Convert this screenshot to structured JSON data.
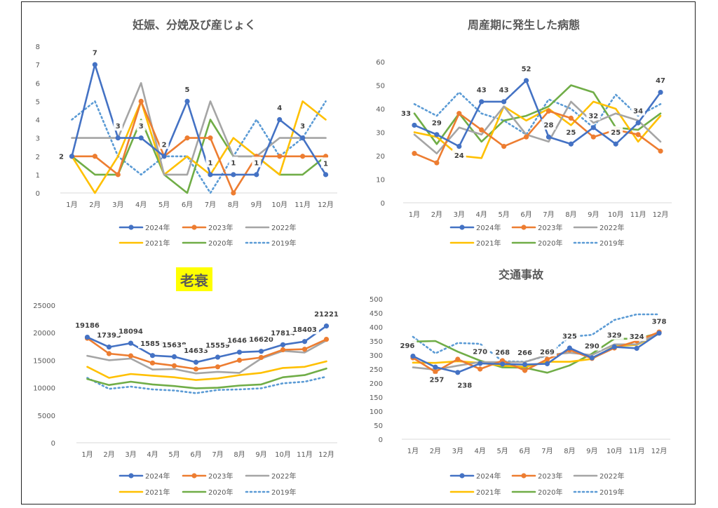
{
  "chart_data": [
    {
      "type": "line",
      "title": "妊娠、分娩及び産じょく",
      "categories": [
        "1月",
        "2月",
        "3月",
        "4月",
        "5月",
        "6月",
        "7月",
        "8月",
        "9月",
        "10月",
        "11月",
        "12月"
      ],
      "ylim": [
        0,
        8
      ],
      "yticks": [
        0,
        1,
        2,
        3,
        4,
        5,
        6,
        7,
        8
      ],
      "grid": false,
      "legend": "bottom",
      "series": [
        {
          "name": "2024年",
          "values": [
            2,
            7,
            3,
            3,
            2,
            5,
            1,
            1,
            1,
            4,
            3,
            1
          ]
        },
        {
          "name": "2023年",
          "values": [
            2,
            2,
            1,
            5,
            2,
            3,
            3,
            0,
            2,
            2,
            2,
            2
          ]
        },
        {
          "name": "2022年",
          "values": [
            3,
            3,
            3,
            6,
            1,
            1,
            5,
            2,
            2,
            3,
            3,
            3
          ]
        },
        {
          "name": "2021年",
          "values": [
            2,
            0,
            2,
            5,
            1,
            2,
            1,
            3,
            2,
            1,
            5,
            4
          ]
        },
        {
          "name": "2020年",
          "values": [
            2,
            1,
            1,
            4,
            1,
            0,
            4,
            2,
            2,
            1,
            1,
            2
          ]
        },
        {
          "name": "2019年",
          "values": [
            4,
            5,
            2,
            1,
            2,
            2,
            0,
            2,
            4,
            2,
            3,
            5
          ]
        }
      ],
      "data_labels": [
        "2",
        "7",
        "3",
        "3",
        "2",
        "5",
        "1",
        "1",
        "1",
        "4",
        "3",
        "1"
      ]
    },
    {
      "type": "line",
      "title": "周産期に発生した病態",
      "categories": [
        "1月",
        "2月",
        "3月",
        "4月",
        "5月",
        "6月",
        "7月",
        "8月",
        "9月",
        "10月",
        "11月",
        "12月"
      ],
      "ylim": [
        0,
        60
      ],
      "yticks": [
        0,
        10,
        20,
        30,
        40,
        50,
        60
      ],
      "grid": false,
      "legend": "bottom",
      "series": [
        {
          "name": "2024年",
          "values": [
            33,
            29,
            24,
            43,
            43,
            52,
            28,
            25,
            32,
            25,
            34,
            47
          ]
        },
        {
          "name": "2023年",
          "values": [
            21,
            17,
            38,
            31,
            24,
            28,
            39,
            36,
            28,
            31,
            29,
            22
          ]
        },
        {
          "name": "2022年",
          "values": [
            29,
            21,
            32,
            29,
            41,
            29,
            26,
            43,
            34,
            38,
            35,
            26
          ]
        },
        {
          "name": "2021年",
          "values": [
            30,
            28,
            20,
            19,
            41,
            35,
            40,
            33,
            43,
            40,
            26,
            37
          ]
        },
        {
          "name": "2020年",
          "values": [
            38,
            25,
            38,
            26,
            35,
            37,
            41,
            50,
            47,
            32,
            31,
            38
          ]
        },
        {
          "name": "2019年",
          "values": [
            42,
            37,
            47,
            38,
            35,
            29,
            44,
            40,
            32,
            46,
            37,
            42
          ]
        }
      ],
      "data_labels": [
        "33",
        "29",
        "24",
        "43",
        "43",
        "52",
        "28",
        "25",
        "32",
        "25",
        "34",
        "47"
      ]
    },
    {
      "type": "line",
      "title": "老衰",
      "categories": [
        "1月",
        "2月",
        "3月",
        "4月",
        "5月",
        "6月",
        "7月",
        "8月",
        "9月",
        "10月",
        "11月",
        "12月"
      ],
      "ylim": [
        0,
        25000
      ],
      "yticks": [
        0,
        5000,
        10000,
        15000,
        20000,
        25000
      ],
      "grid": false,
      "legend": "bottom",
      "series": [
        {
          "name": "2024年",
          "values": [
            19186,
            17393,
            18094,
            15858,
            15638,
            14633,
            15559,
            16463,
            16620,
            17814,
            18403,
            21221
          ]
        },
        {
          "name": "2023年",
          "values": [
            19000,
            16200,
            15800,
            14500,
            14000,
            13400,
            13800,
            15000,
            15500,
            16900,
            17000,
            18800
          ]
        },
        {
          "name": "2022年",
          "values": [
            15800,
            15000,
            15300,
            13300,
            13400,
            12600,
            12900,
            12700,
            15300,
            16700,
            16400,
            18600
          ]
        },
        {
          "name": "2021年",
          "values": [
            13800,
            11800,
            12500,
            12200,
            11900,
            11400,
            11700,
            12300,
            12700,
            13600,
            13800,
            14800
          ]
        },
        {
          "name": "2020年",
          "values": [
            11600,
            10500,
            11100,
            10600,
            10300,
            9900,
            10000,
            10400,
            10600,
            11900,
            12300,
            13500
          ]
        },
        {
          "name": "2019年",
          "values": [
            11800,
            9800,
            10200,
            9700,
            9500,
            9000,
            9600,
            9700,
            9900,
            10800,
            11100,
            12000
          ]
        }
      ],
      "data_labels": [
        "19186",
        "17393",
        "18094",
        "15858",
        "15638",
        "14633",
        "15559",
        "16463",
        "16620",
        "17814",
        "18403",
        "21221"
      ]
    },
    {
      "type": "line",
      "title": "交通事故",
      "categories": [
        "1月",
        "2月",
        "3月",
        "4月",
        "5月",
        "6月",
        "7月",
        "8月",
        "9月",
        "10月",
        "11月",
        "12月"
      ],
      "ylim": [
        0,
        500
      ],
      "yticks": [
        0,
        50,
        100,
        150,
        200,
        250,
        300,
        350,
        400,
        450,
        500
      ],
      "grid": false,
      "legend": "bottom",
      "series": [
        {
          "name": "2024年",
          "values": [
            296,
            257,
            238,
            270,
            268,
            266,
            269,
            325,
            290,
            329,
            324,
            378
          ]
        },
        {
          "name": "2023年",
          "values": [
            290,
            240,
            285,
            250,
            280,
            245,
            285,
            318,
            288,
            325,
            350,
            382
          ]
        },
        {
          "name": "2022年",
          "values": [
            256,
            248,
            262,
            275,
            275,
            275,
            300,
            308,
            300,
            338,
            338,
            380
          ]
        },
        {
          "name": "2021年",
          "values": [
            273,
            272,
            278,
            272,
            262,
            258,
            276,
            276,
            286,
            332,
            336,
            376
          ]
        },
        {
          "name": "2020年",
          "values": [
            348,
            350,
            312,
            280,
            256,
            255,
            237,
            263,
            305,
            358,
            358,
            378
          ]
        },
        {
          "name": "2019年",
          "values": [
            365,
            306,
            343,
            340,
            278,
            276,
            298,
            365,
            372,
            425,
            445,
            445
          ]
        }
      ],
      "data_labels": [
        "296",
        "257",
        "238",
        "270",
        "268",
        "266",
        "269",
        "325",
        "290",
        "329",
        "324",
        "378"
      ]
    }
  ],
  "series_colors": {
    "2024年": "#4472C4",
    "2023年": "#ED7D31",
    "2022年": "#A5A5A5",
    "2021年": "#FFC000",
    "2020年": "#70AD47",
    "2019年": "#5B9BD5"
  },
  "highlight_color": "#FFFF00"
}
